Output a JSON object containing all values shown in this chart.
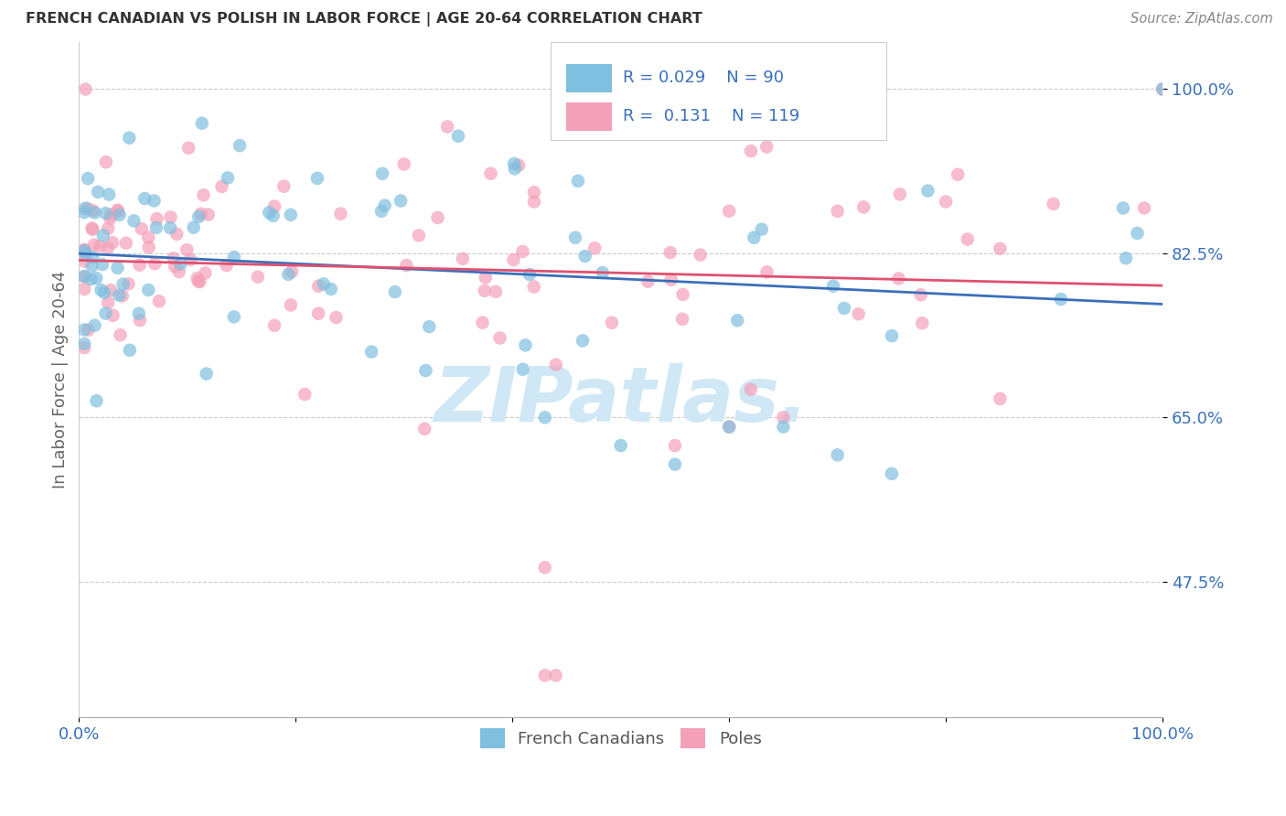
{
  "title": "FRENCH CANADIAN VS POLISH IN LABOR FORCE | AGE 20-64 CORRELATION CHART",
  "source": "Source: ZipAtlas.com",
  "ylabel": "In Labor Force | Age 20-64",
  "xlim": [
    0.0,
    1.0
  ],
  "ylim": [
    0.33,
    1.05
  ],
  "xtick_positions": [
    0.0,
    0.2,
    0.4,
    0.6,
    0.8,
    1.0
  ],
  "xticklabels": [
    "0.0%",
    "",
    "",
    "",
    "",
    "100.0%"
  ],
  "ytick_positions": [
    0.475,
    0.65,
    0.825,
    1.0
  ],
  "ytick_labels": [
    "47.5%",
    "65.0%",
    "82.5%",
    "100.0%"
  ],
  "blue_color": "#7fbfdf",
  "pink_color": "#f4a0b8",
  "blue_line_color": "#3a6fba",
  "pink_line_color": "#e05070",
  "blue_R": 0.029,
  "blue_N": 90,
  "pink_R": 0.131,
  "pink_N": 119,
  "watermark": "ZIPatlas.",
  "watermark_color": "#d0e8f5",
  "background_color": "#ffffff",
  "title_color": "#333333",
  "ytick_color": "#3a6fba",
  "legend_label_color": "#3a6fba",
  "blue_scatter_x": [
    0.01,
    0.01,
    0.02,
    0.02,
    0.02,
    0.03,
    0.03,
    0.04,
    0.04,
    0.05,
    0.05,
    0.05,
    0.06,
    0.06,
    0.06,
    0.07,
    0.07,
    0.07,
    0.08,
    0.08,
    0.08,
    0.09,
    0.09,
    0.1,
    0.1,
    0.11,
    0.11,
    0.12,
    0.12,
    0.13,
    0.13,
    0.14,
    0.14,
    0.15,
    0.15,
    0.16,
    0.17,
    0.17,
    0.18,
    0.19,
    0.2,
    0.2,
    0.21,
    0.22,
    0.23,
    0.24,
    0.25,
    0.26,
    0.27,
    0.28,
    0.3,
    0.32,
    0.33,
    0.35,
    0.37,
    0.39,
    0.4,
    0.42,
    0.44,
    0.47,
    0.5,
    0.55,
    0.6,
    0.65,
    0.7,
    0.75,
    0.8,
    0.85,
    0.9,
    0.95,
    1.0,
    0.28,
    0.3,
    0.32,
    0.38,
    0.42,
    0.45,
    0.48,
    0.52,
    0.55,
    0.58,
    0.62,
    0.65,
    0.68,
    0.72,
    0.78,
    0.82,
    0.88,
    0.92,
    0.96
  ],
  "blue_scatter_y": [
    0.83,
    0.82,
    0.84,
    0.825,
    0.815,
    0.835,
    0.82,
    0.83,
    0.84,
    0.825,
    0.815,
    0.84,
    0.83,
    0.82,
    0.835,
    0.825,
    0.84,
    0.815,
    0.83,
    0.82,
    0.91,
    0.835,
    0.825,
    0.84,
    0.82,
    0.825,
    0.835,
    0.84,
    0.82,
    0.83,
    0.91,
    0.825,
    0.84,
    0.82,
    0.76,
    0.835,
    0.825,
    0.78,
    0.83,
    0.84,
    0.82,
    0.88,
    0.835,
    0.825,
    0.81,
    0.84,
    0.82,
    0.835,
    0.76,
    0.825,
    0.83,
    0.84,
    0.82,
    0.83,
    0.835,
    0.825,
    0.83,
    0.82,
    0.77,
    0.72,
    0.835,
    0.82,
    0.83,
    0.825,
    0.84,
    0.83,
    0.82,
    0.835,
    0.825,
    0.83,
    0.835,
    0.79,
    0.8,
    0.79,
    0.82,
    0.81,
    0.82,
    0.83,
    0.82,
    0.825,
    0.82,
    0.83,
    0.825,
    0.82,
    0.82,
    0.83,
    0.82,
    0.83,
    0.825,
    0.83
  ],
  "pink_scatter_x": [
    0.01,
    0.01,
    0.02,
    0.02,
    0.03,
    0.03,
    0.04,
    0.04,
    0.05,
    0.05,
    0.06,
    0.06,
    0.07,
    0.07,
    0.08,
    0.08,
    0.09,
    0.09,
    0.1,
    0.1,
    0.11,
    0.11,
    0.12,
    0.12,
    0.13,
    0.13,
    0.14,
    0.14,
    0.15,
    0.15,
    0.16,
    0.16,
    0.17,
    0.18,
    0.18,
    0.19,
    0.2,
    0.2,
    0.21,
    0.22,
    0.23,
    0.24,
    0.25,
    0.26,
    0.27,
    0.28,
    0.29,
    0.3,
    0.31,
    0.32,
    0.33,
    0.35,
    0.37,
    0.38,
    0.4,
    0.42,
    0.44,
    0.46,
    0.48,
    0.5,
    0.52,
    0.55,
    0.58,
    0.6,
    0.62,
    0.65,
    0.68,
    0.7,
    0.72,
    0.75,
    0.78,
    0.8,
    0.82,
    0.85,
    0.88,
    0.9,
    0.92,
    0.95,
    0.98,
    1.0,
    0.1,
    0.12,
    0.15,
    0.17,
    0.2,
    0.22,
    0.25,
    0.27,
    0.3,
    0.33,
    0.36,
    0.39,
    0.25,
    0.28,
    0.32,
    0.35,
    0.38,
    0.42,
    0.45,
    0.48,
    0.43,
    0.44,
    0.13,
    0.16,
    0.19,
    0.22,
    0.26,
    0.29,
    0.33,
    0.37,
    0.4,
    0.44,
    0.47,
    0.51,
    0.54,
    0.57,
    0.61,
    0.65,
    0.68
  ],
  "pink_scatter_y": [
    0.835,
    0.82,
    0.84,
    0.825,
    0.83,
    0.82,
    0.835,
    0.825,
    0.84,
    0.82,
    0.83,
    0.84,
    0.825,
    0.82,
    0.835,
    0.82,
    0.84,
    0.825,
    0.83,
    0.82,
    0.84,
    0.825,
    0.835,
    0.82,
    0.83,
    0.84,
    0.825,
    0.82,
    0.84,
    0.83,
    0.82,
    0.835,
    0.84,
    0.825,
    0.82,
    0.84,
    0.835,
    0.82,
    0.84,
    0.825,
    0.84,
    0.83,
    0.84,
    0.835,
    0.84,
    0.83,
    0.84,
    0.835,
    0.83,
    0.84,
    0.84,
    0.835,
    0.84,
    0.83,
    0.84,
    0.835,
    0.84,
    0.835,
    0.84,
    0.84,
    0.84,
    0.84,
    0.84,
    0.84,
    0.84,
    0.84,
    0.84,
    0.84,
    0.84,
    0.84,
    0.84,
    0.84,
    0.84,
    0.84,
    0.84,
    0.84,
    0.84,
    0.84,
    0.84,
    0.84,
    0.94,
    0.9,
    0.87,
    0.9,
    0.87,
    0.88,
    0.86,
    0.87,
    0.86,
    0.87,
    0.86,
    0.87,
    0.76,
    0.77,
    0.76,
    0.78,
    0.77,
    0.76,
    0.77,
    0.76,
    0.375,
    0.375,
    0.68,
    0.7,
    0.68,
    0.69,
    0.7,
    0.69,
    0.68,
    0.69,
    0.68,
    0.69,
    0.68,
    0.69,
    0.68,
    0.69,
    0.68,
    0.64,
    0.65
  ]
}
